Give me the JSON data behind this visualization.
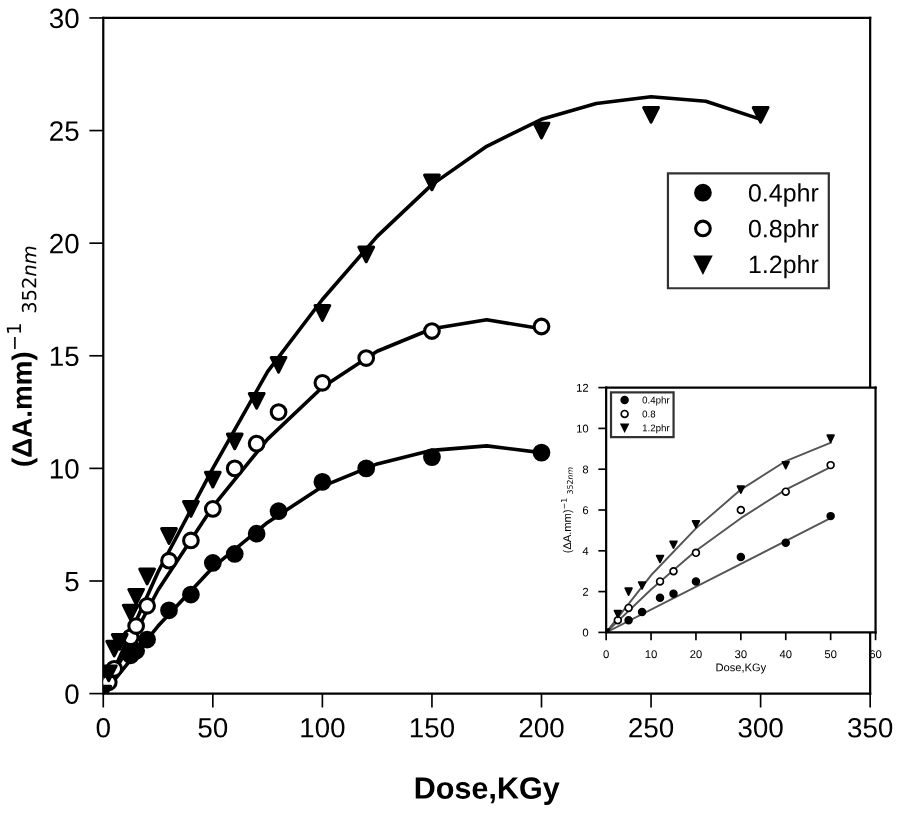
{
  "chart_data": [
    {
      "type": "scatter",
      "xlabel": "Dose,KGy",
      "ylabel": "(ΔA.mm)$^{−1}$ $_{352nm}$",
      "xlim": [
        0,
        350
      ],
      "ylim": [
        0,
        30
      ],
      "xticks": [
        0,
        50,
        100,
        150,
        200,
        250,
        300,
        350
      ],
      "yticks": [
        0,
        5,
        10,
        15,
        20,
        25,
        30
      ],
      "grid": false,
      "legend": "right",
      "series": [
        {
          "name": "0.4phr",
          "color": "#000000",
          "marker": "circle",
          "x": [
            12.5,
            15,
            20,
            30,
            40,
            50,
            60,
            70,
            80,
            100,
            120,
            150,
            200
          ],
          "values": [
            1.7,
            1.9,
            2.4,
            3.7,
            4.4,
            5.8,
            6.2,
            7.1,
            8.1,
            9.4,
            10.0,
            10.5,
            10.7
          ]
        },
        {
          "name": "0.8phr",
          "color": "#ffffff",
          "marker": "circle",
          "x": [
            2.5,
            5,
            12.5,
            15,
            20,
            30,
            40,
            50,
            60,
            70,
            80,
            100,
            120,
            150,
            200
          ],
          "values": [
            0.5,
            1.1,
            2.5,
            3.0,
            3.9,
            5.9,
            6.8,
            8.2,
            10.0,
            11.1,
            12.5,
            13.8,
            14.9,
            16.1,
            16.3
          ]
        },
        {
          "name": "1.2phr",
          "color": "#000000",
          "marker": "triangle",
          "x": [
            0,
            2.5,
            5,
            7.5,
            12.5,
            15,
            20,
            30,
            40,
            50,
            60,
            70,
            80,
            100,
            120,
            150,
            200,
            250,
            300
          ],
          "values": [
            0,
            0.9,
            2.0,
            2.3,
            3.6,
            4.3,
            5.2,
            7.0,
            8.2,
            9.5,
            11.2,
            13.0,
            14.6,
            16.9,
            19.5,
            22.7,
            25.0,
            25.7,
            25.7
          ]
        },
        {
          "type": "line",
          "color": "#000000",
          "marker": "none",
          "x": [
            0,
            25,
            50,
            75,
            100,
            125,
            150,
            175,
            200
          ],
          "values": [
            0,
            3.0,
            5.6,
            7.6,
            9.2,
            10.2,
            10.8,
            11.0,
            10.7
          ]
        },
        {
          "type": "line",
          "color": "#000000",
          "marker": "none",
          "x": [
            0,
            25,
            50,
            75,
            100,
            125,
            150,
            175,
            200
          ],
          "values": [
            0,
            4.6,
            8.3,
            11.3,
            13.6,
            15.2,
            16.2,
            16.6,
            16.2
          ]
        },
        {
          "type": "line",
          "color": "#000000",
          "marker": "none",
          "x": [
            0,
            25,
            50,
            75,
            100,
            125,
            150,
            175,
            200,
            225,
            250,
            275,
            300
          ],
          "values": [
            0,
            5.4,
            10.0,
            14.3,
            17.5,
            20.3,
            22.6,
            24.3,
            25.5,
            26.2,
            26.5,
            26.3,
            25.5
          ]
        }
      ]
    },
    {
      "type": "scatter",
      "xlabel": "Dose,KGy",
      "ylabel": "(ΔA.mm)$^{−1}$ $_{352nm}$",
      "xlim": [
        0,
        60
      ],
      "ylim": [
        0,
        12
      ],
      "xticks": [
        0,
        10,
        20,
        30,
        40,
        50,
        60
      ],
      "yticks": [
        0,
        2,
        4,
        6,
        8,
        10,
        12
      ],
      "grid": false,
      "legend": "top left",
      "series": [
        {
          "name": "0.4phr",
          "color": "#000000",
          "marker": "circle",
          "x": [
            5,
            8,
            12,
            15,
            20,
            30,
            40,
            50
          ],
          "values": [
            0.6,
            1.0,
            1.7,
            1.9,
            2.5,
            3.7,
            4.4,
            5.7
          ]
        },
        {
          "name": "0.8",
          "color": "#ffffff",
          "marker": "circle",
          "x": [
            2.6,
            5,
            12,
            15,
            20,
            30,
            40,
            50
          ],
          "values": [
            0.6,
            1.2,
            2.5,
            3.0,
            3.9,
            6.0,
            6.9,
            8.2
          ]
        },
        {
          "name": "1.2phr",
          "color": "#000000",
          "marker": "triangle",
          "x": [
            0,
            2.6,
            5,
            8,
            12,
            15,
            20,
            30,
            40,
            50
          ],
          "values": [
            0,
            0.9,
            2.0,
            2.3,
            3.6,
            4.3,
            5.3,
            7.0,
            8.2,
            9.5
          ]
        },
        {
          "type": "line",
          "color": "#555555",
          "marker": "none",
          "x": [
            0,
            50
          ],
          "values": [
            0,
            5.6
          ]
        },
        {
          "type": "line",
          "color": "#555555",
          "marker": "none",
          "x": [
            0,
            10,
            20,
            30,
            40,
            50
          ],
          "values": [
            0,
            2.1,
            4.0,
            5.6,
            7.0,
            8.1
          ]
        },
        {
          "type": "line",
          "color": "#555555",
          "marker": "none",
          "x": [
            0,
            10,
            20,
            30,
            40,
            50
          ],
          "values": [
            0,
            2.8,
            5.1,
            7.0,
            8.4,
            9.3
          ]
        }
      ]
    }
  ]
}
